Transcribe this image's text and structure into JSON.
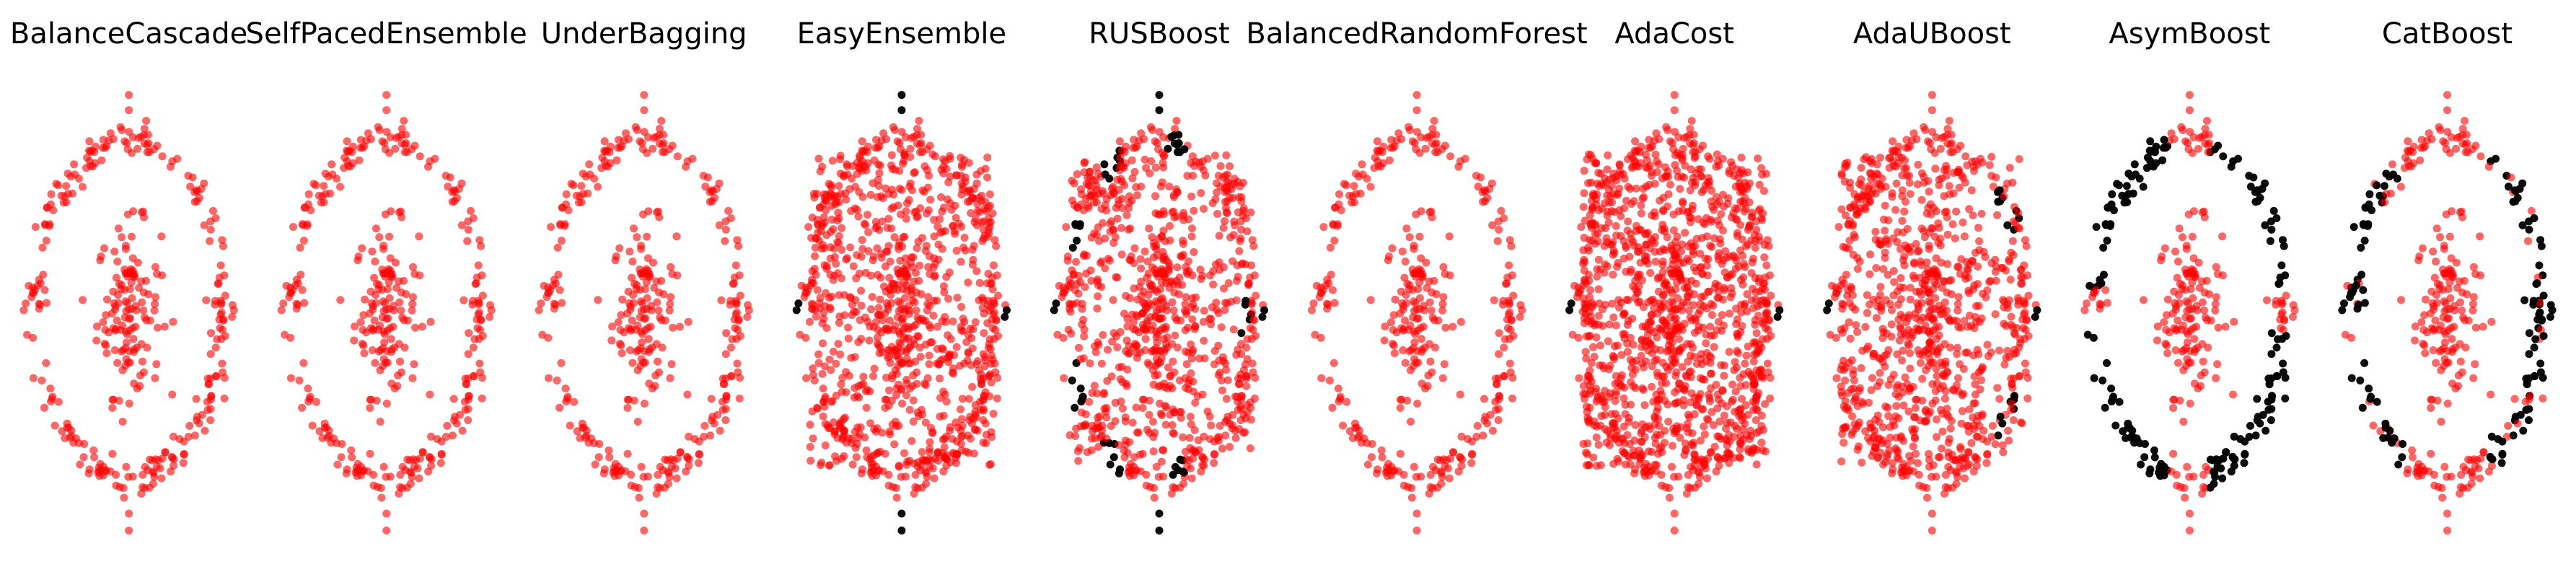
{
  "colors": {
    "predicted_positive": "#ff0000",
    "predicted_negative": "#000000",
    "background": "#ffffff"
  },
  "chart_data": [
    {
      "type": "scatter",
      "title": "BalanceCascade",
      "grid": false,
      "axes": "off",
      "pattern": "positive_on_ring_and_center",
      "positive_fraction": 1.0
    },
    {
      "type": "scatter",
      "title": "SelfPacedEnsemble",
      "grid": false,
      "axes": "off",
      "pattern": "positive_on_ring_and_center",
      "positive_fraction": 0.995
    },
    {
      "type": "scatter",
      "title": "UnderBagging",
      "grid": false,
      "axes": "off",
      "pattern": "positive_on_ring_and_center",
      "positive_fraction": 1.0
    },
    {
      "type": "scatter",
      "title": "EasyEnsemble",
      "grid": false,
      "axes": "off",
      "pattern": "positive_box",
      "positive_fraction": 0.97
    },
    {
      "type": "scatter",
      "title": "RUSBoost",
      "grid": false,
      "axes": "off",
      "pattern": "patchy_box",
      "positive_fraction": 0.85
    },
    {
      "type": "scatter",
      "title": "BalancedRandomForest",
      "grid": false,
      "axes": "off",
      "pattern": "positive_on_ring_and_center",
      "positive_fraction": 1.0
    },
    {
      "type": "scatter",
      "title": "AdaCost",
      "grid": false,
      "axes": "off",
      "pattern": "positive_box_dense",
      "positive_fraction": 0.99
    },
    {
      "type": "scatter",
      "title": "AdaUBoost",
      "grid": false,
      "axes": "off",
      "pattern": "positive_box_corner_gaps",
      "positive_fraction": 0.92
    },
    {
      "type": "scatter",
      "title": "AsymBoost",
      "grid": false,
      "axes": "off",
      "pattern": "negative_ring_positive_cross",
      "positive_fraction": 0.45
    },
    {
      "type": "scatter",
      "title": "CatBoost",
      "grid": false,
      "axes": "off",
      "pattern": "mixed_ring_positive_center",
      "positive_fraction": 0.7
    }
  ]
}
